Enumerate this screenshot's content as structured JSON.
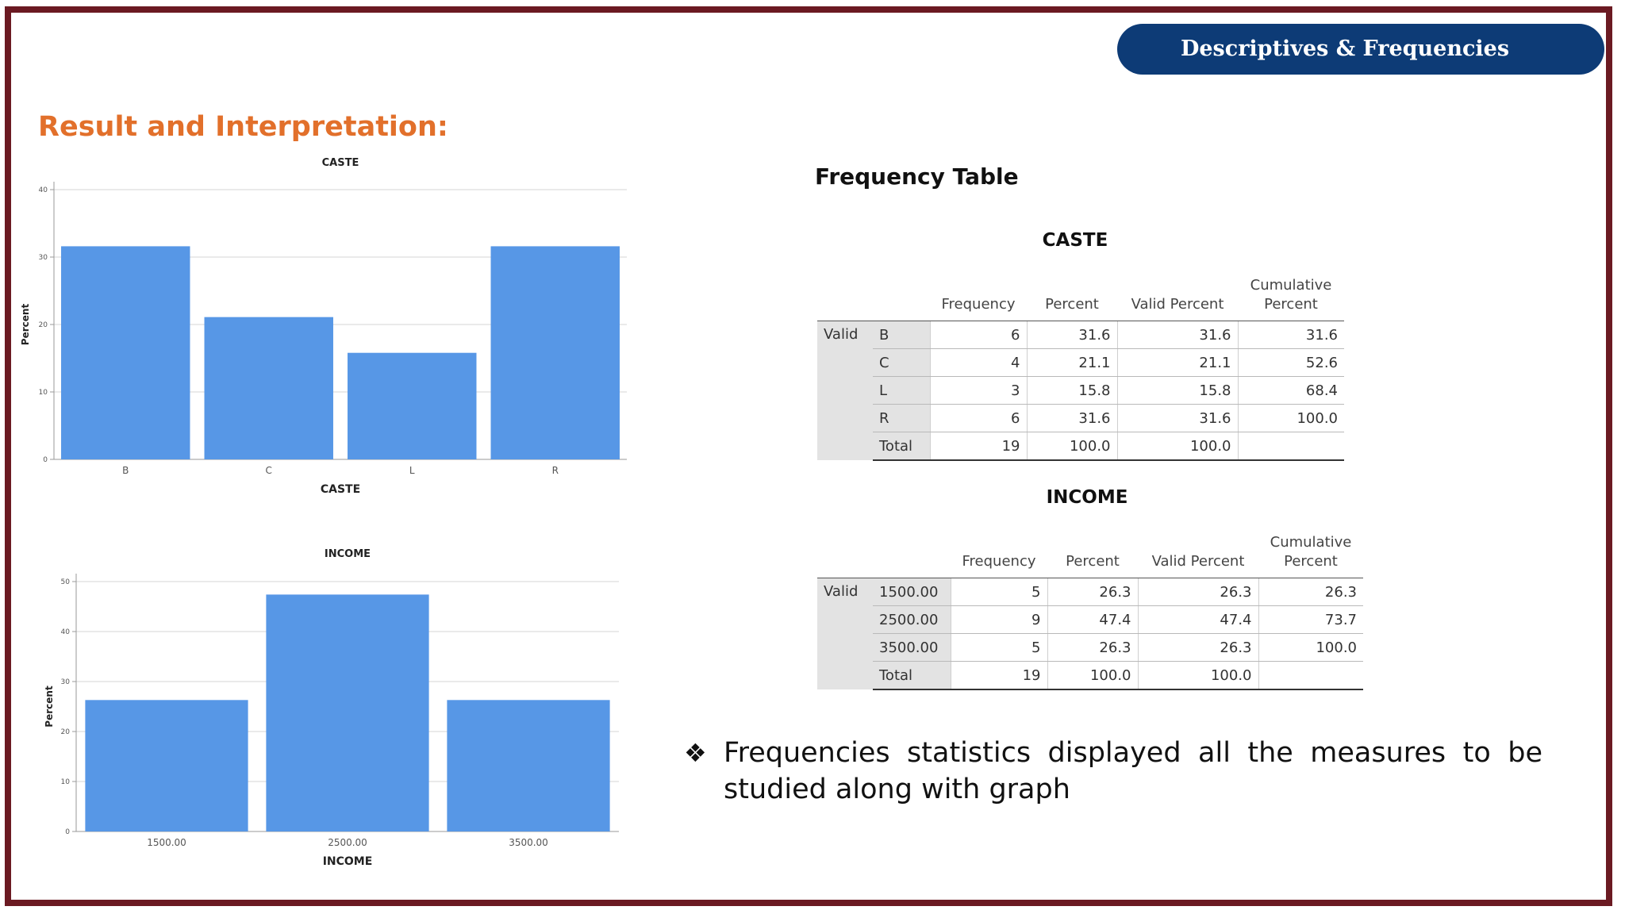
{
  "header": {
    "title": "Descriptives & Frequencies"
  },
  "heading": "Result and Interpretation:",
  "chart_data": [
    {
      "type": "bar",
      "title": "CASTE",
      "xlabel": "CASTE",
      "ylabel": "Percent",
      "categories": [
        "B",
        "C",
        "L",
        "R"
      ],
      "values": [
        31.6,
        21.1,
        15.8,
        31.6
      ],
      "ylim": [
        0,
        40
      ],
      "yticks": [
        0,
        10,
        20,
        30,
        40
      ],
      "grid": true,
      "bar_color": "#5797e6"
    },
    {
      "type": "bar",
      "title": "INCOME",
      "xlabel": "INCOME",
      "ylabel": "Percent",
      "categories": [
        "1500.00",
        "2500.00",
        "3500.00"
      ],
      "values": [
        26.3,
        47.4,
        26.3
      ],
      "ylim": [
        0,
        50
      ],
      "yticks": [
        0,
        10,
        20,
        30,
        40,
        50
      ],
      "grid": true,
      "bar_color": "#5797e6"
    }
  ],
  "frequency_title": "Frequency Table",
  "tables": [
    {
      "caption": "CASTE",
      "headers": [
        "Frequency",
        "Percent",
        "Valid Percent",
        "Cumulative Percent"
      ],
      "group": "Valid",
      "rows": [
        {
          "label": "B",
          "frequency": "6",
          "percent": "31.6",
          "valid_percent": "31.6",
          "cumulative": "31.6"
        },
        {
          "label": "C",
          "frequency": "4",
          "percent": "21.1",
          "valid_percent": "21.1",
          "cumulative": "52.6"
        },
        {
          "label": "L",
          "frequency": "3",
          "percent": "15.8",
          "valid_percent": "15.8",
          "cumulative": "68.4"
        },
        {
          "label": "R",
          "frequency": "6",
          "percent": "31.6",
          "valid_percent": "31.6",
          "cumulative": "100.0"
        },
        {
          "label": "Total",
          "frequency": "19",
          "percent": "100.0",
          "valid_percent": "100.0",
          "cumulative": ""
        }
      ]
    },
    {
      "caption": "INCOME",
      "headers": [
        "Frequency",
        "Percent",
        "Valid Percent",
        "Cumulative Percent"
      ],
      "group": "Valid",
      "rows": [
        {
          "label": "1500.00",
          "frequency": "5",
          "percent": "26.3",
          "valid_percent": "26.3",
          "cumulative": "26.3"
        },
        {
          "label": "2500.00",
          "frequency": "9",
          "percent": "47.4",
          "valid_percent": "47.4",
          "cumulative": "73.7"
        },
        {
          "label": "3500.00",
          "frequency": "5",
          "percent": "26.3",
          "valid_percent": "26.3",
          "cumulative": "100.0"
        },
        {
          "label": "Total",
          "frequency": "19",
          "percent": "100.0",
          "valid_percent": "100.0",
          "cumulative": ""
        }
      ]
    }
  ],
  "bullet": {
    "icon": "four-diamond-bullet-icon",
    "symbol": "❖",
    "text": "Frequencies statistics displayed all the measures to be studied along with graph"
  }
}
